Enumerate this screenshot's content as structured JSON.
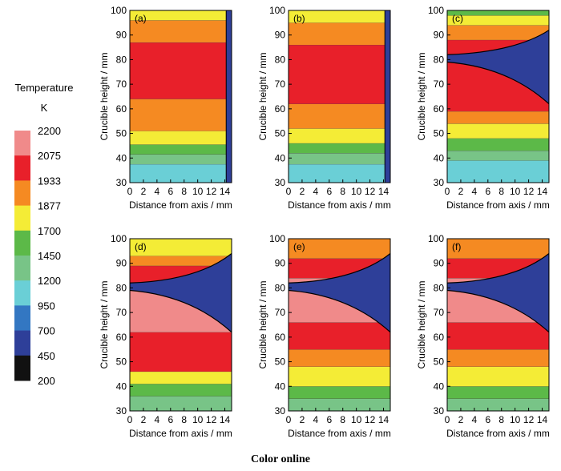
{
  "chart_data": {
    "type": "heatmap",
    "colorbar": {
      "title_line1": "Temperature",
      "title_line2": "K",
      "levels": [
        {
          "value": "2200",
          "color": "#f08a8a"
        },
        {
          "value": "2075",
          "color": "#e8202a"
        },
        {
          "value": "1933",
          "color": "#f58a22"
        },
        {
          "value": "1877",
          "color": "#f4ec36"
        },
        {
          "value": "1700",
          "color": "#5cb948"
        },
        {
          "value": "1450",
          "color": "#78c487"
        },
        {
          "value": "1200",
          "color": "#6acfd6"
        },
        {
          "value": "950",
          "color": "#3377c2"
        },
        {
          "value": "700",
          "color": "#2e3f99"
        },
        {
          "value": "450",
          "color": "#111111"
        },
        {
          "value": "200",
          "color": null
        }
      ]
    },
    "xlabel": "Distance from axis / mm",
    "ylabel": "Crucible height / mm",
    "xticks": [
      "0",
      "2",
      "4",
      "6",
      "8",
      "10",
      "12",
      "14"
    ],
    "yticks": [
      "30",
      "40",
      "50",
      "60",
      "70",
      "80",
      "90",
      "100"
    ],
    "xlim": [
      0,
      15
    ],
    "ylim": [
      30,
      100
    ],
    "panels": [
      {
        "label": "(a)",
        "bands": [
          {
            "y": [
              30,
              37.5
            ],
            "color": "#6acfd6"
          },
          {
            "y": [
              37.5,
              41.5
            ],
            "color": "#78c487"
          },
          {
            "y": [
              41.5,
              45.5
            ],
            "color": "#5cb948"
          },
          {
            "y": [
              45.5,
              51
            ],
            "color": "#f4ec36"
          },
          {
            "y": [
              51,
              64
            ],
            "color": "#f58a22"
          },
          {
            "y": [
              64,
              87
            ],
            "color": "#e8202a"
          },
          {
            "y": [
              87,
              96
            ],
            "color": "#f58a22"
          },
          {
            "y": [
              96,
              100
            ],
            "color": "#f4ec36"
          }
        ],
        "wall_from_x": 14.2
      },
      {
        "label": "(b)",
        "bands": [
          {
            "y": [
              30,
              37.5
            ],
            "color": "#6acfd6"
          },
          {
            "y": [
              37.5,
              42
            ],
            "color": "#78c487"
          },
          {
            "y": [
              42,
              46
            ],
            "color": "#5cb948"
          },
          {
            "y": [
              46,
              52
            ],
            "color": "#f4ec36"
          },
          {
            "y": [
              52,
              62
            ],
            "color": "#f58a22"
          },
          {
            "y": [
              62,
              86
            ],
            "color": "#e8202a"
          },
          {
            "y": [
              86,
              95
            ],
            "color": "#f58a22"
          },
          {
            "y": [
              95,
              100
            ],
            "color": "#f4ec36"
          }
        ],
        "wall_from_x": 14.2
      },
      {
        "label": "(c)",
        "bands": [
          {
            "y": [
              30,
              39
            ],
            "color": "#6acfd6"
          },
          {
            "y": [
              39,
              43
            ],
            "color": "#78c487"
          },
          {
            "y": [
              43,
              48
            ],
            "color": "#5cb948"
          },
          {
            "y": [
              48,
              54
            ],
            "color": "#f4ec36"
          },
          {
            "y": [
              54,
              59
            ],
            "color": "#f58a22"
          },
          {
            "y": [
              59,
              79
            ],
            "color": "#e8202a"
          },
          {
            "y": [
              79,
              82
            ],
            "color": "#f58a22"
          },
          {
            "y": [
              82,
              88
            ],
            "color": "#e8202a"
          },
          {
            "y": [
              88,
              94
            ],
            "color": "#f58a22"
          },
          {
            "y": [
              94,
              98
            ],
            "color": "#f4ec36"
          },
          {
            "y": [
              98,
              100
            ],
            "color": "#5cb948"
          }
        ],
        "void": {
          "y_axis_bottom": 79,
          "y_axis_top": 82,
          "y_wall_bottom": 62,
          "y_wall_top": 92
        }
      },
      {
        "label": "(d)",
        "bands": [
          {
            "y": [
              30,
              36
            ],
            "color": "#78c487"
          },
          {
            "y": [
              36,
              41
            ],
            "color": "#5cb948"
          },
          {
            "y": [
              41,
              46
            ],
            "color": "#f4ec36"
          },
          {
            "y": [
              46,
              62
            ],
            "color": "#e8202a"
          },
          {
            "y": [
              62,
              79
            ],
            "color": "#f08a8a"
          },
          {
            "y": [
              79,
              81
            ],
            "color": "#e8202a"
          },
          {
            "y": [
              81,
              89
            ],
            "color": "#e8202a"
          },
          {
            "y": [
              89,
              93
            ],
            "color": "#f58a22"
          },
          {
            "y": [
              93,
              100
            ],
            "color": "#f4ec36"
          }
        ],
        "void": {
          "y_axis_bottom": 79,
          "y_axis_top": 82,
          "y_wall_bottom": 62,
          "y_wall_top": 94
        }
      },
      {
        "label": "(e)",
        "bands": [
          {
            "y": [
              30,
              35
            ],
            "color": "#78c487"
          },
          {
            "y": [
              35,
              40
            ],
            "color": "#5cb948"
          },
          {
            "y": [
              40,
              48
            ],
            "color": "#f4ec36"
          },
          {
            "y": [
              48,
              55
            ],
            "color": "#f58a22"
          },
          {
            "y": [
              55,
              66
            ],
            "color": "#e8202a"
          },
          {
            "y": [
              66,
              79
            ],
            "color": "#f08a8a"
          },
          {
            "y": [
              79,
              84
            ],
            "color": "#f08a8a"
          },
          {
            "y": [
              84,
              92
            ],
            "color": "#e8202a"
          },
          {
            "y": [
              92,
              100
            ],
            "color": "#f58a22"
          }
        ],
        "void": {
          "y_axis_bottom": 79,
          "y_axis_top": 82,
          "y_wall_bottom": 62,
          "y_wall_top": 94
        }
      },
      {
        "label": "(f)",
        "bands": [
          {
            "y": [
              30,
              35
            ],
            "color": "#78c487"
          },
          {
            "y": [
              35,
              40
            ],
            "color": "#5cb948"
          },
          {
            "y": [
              40,
              48
            ],
            "color": "#f4ec36"
          },
          {
            "y": [
              48,
              55
            ],
            "color": "#f58a22"
          },
          {
            "y": [
              55,
              66
            ],
            "color": "#e8202a"
          },
          {
            "y": [
              66,
              79
            ],
            "color": "#f08a8a"
          },
          {
            "y": [
              79,
              84
            ],
            "color": "#f08a8a"
          },
          {
            "y": [
              84,
              92
            ],
            "color": "#e8202a"
          },
          {
            "y": [
              92,
              100
            ],
            "color": "#f58a22"
          }
        ],
        "void": {
          "y_axis_bottom": 79,
          "y_axis_top": 82,
          "y_wall_bottom": 62,
          "y_wall_top": 94
        }
      }
    ]
  },
  "caption": "Color online",
  "colors": {
    "void": "#2e3f99",
    "wall": "#2e3f99"
  }
}
